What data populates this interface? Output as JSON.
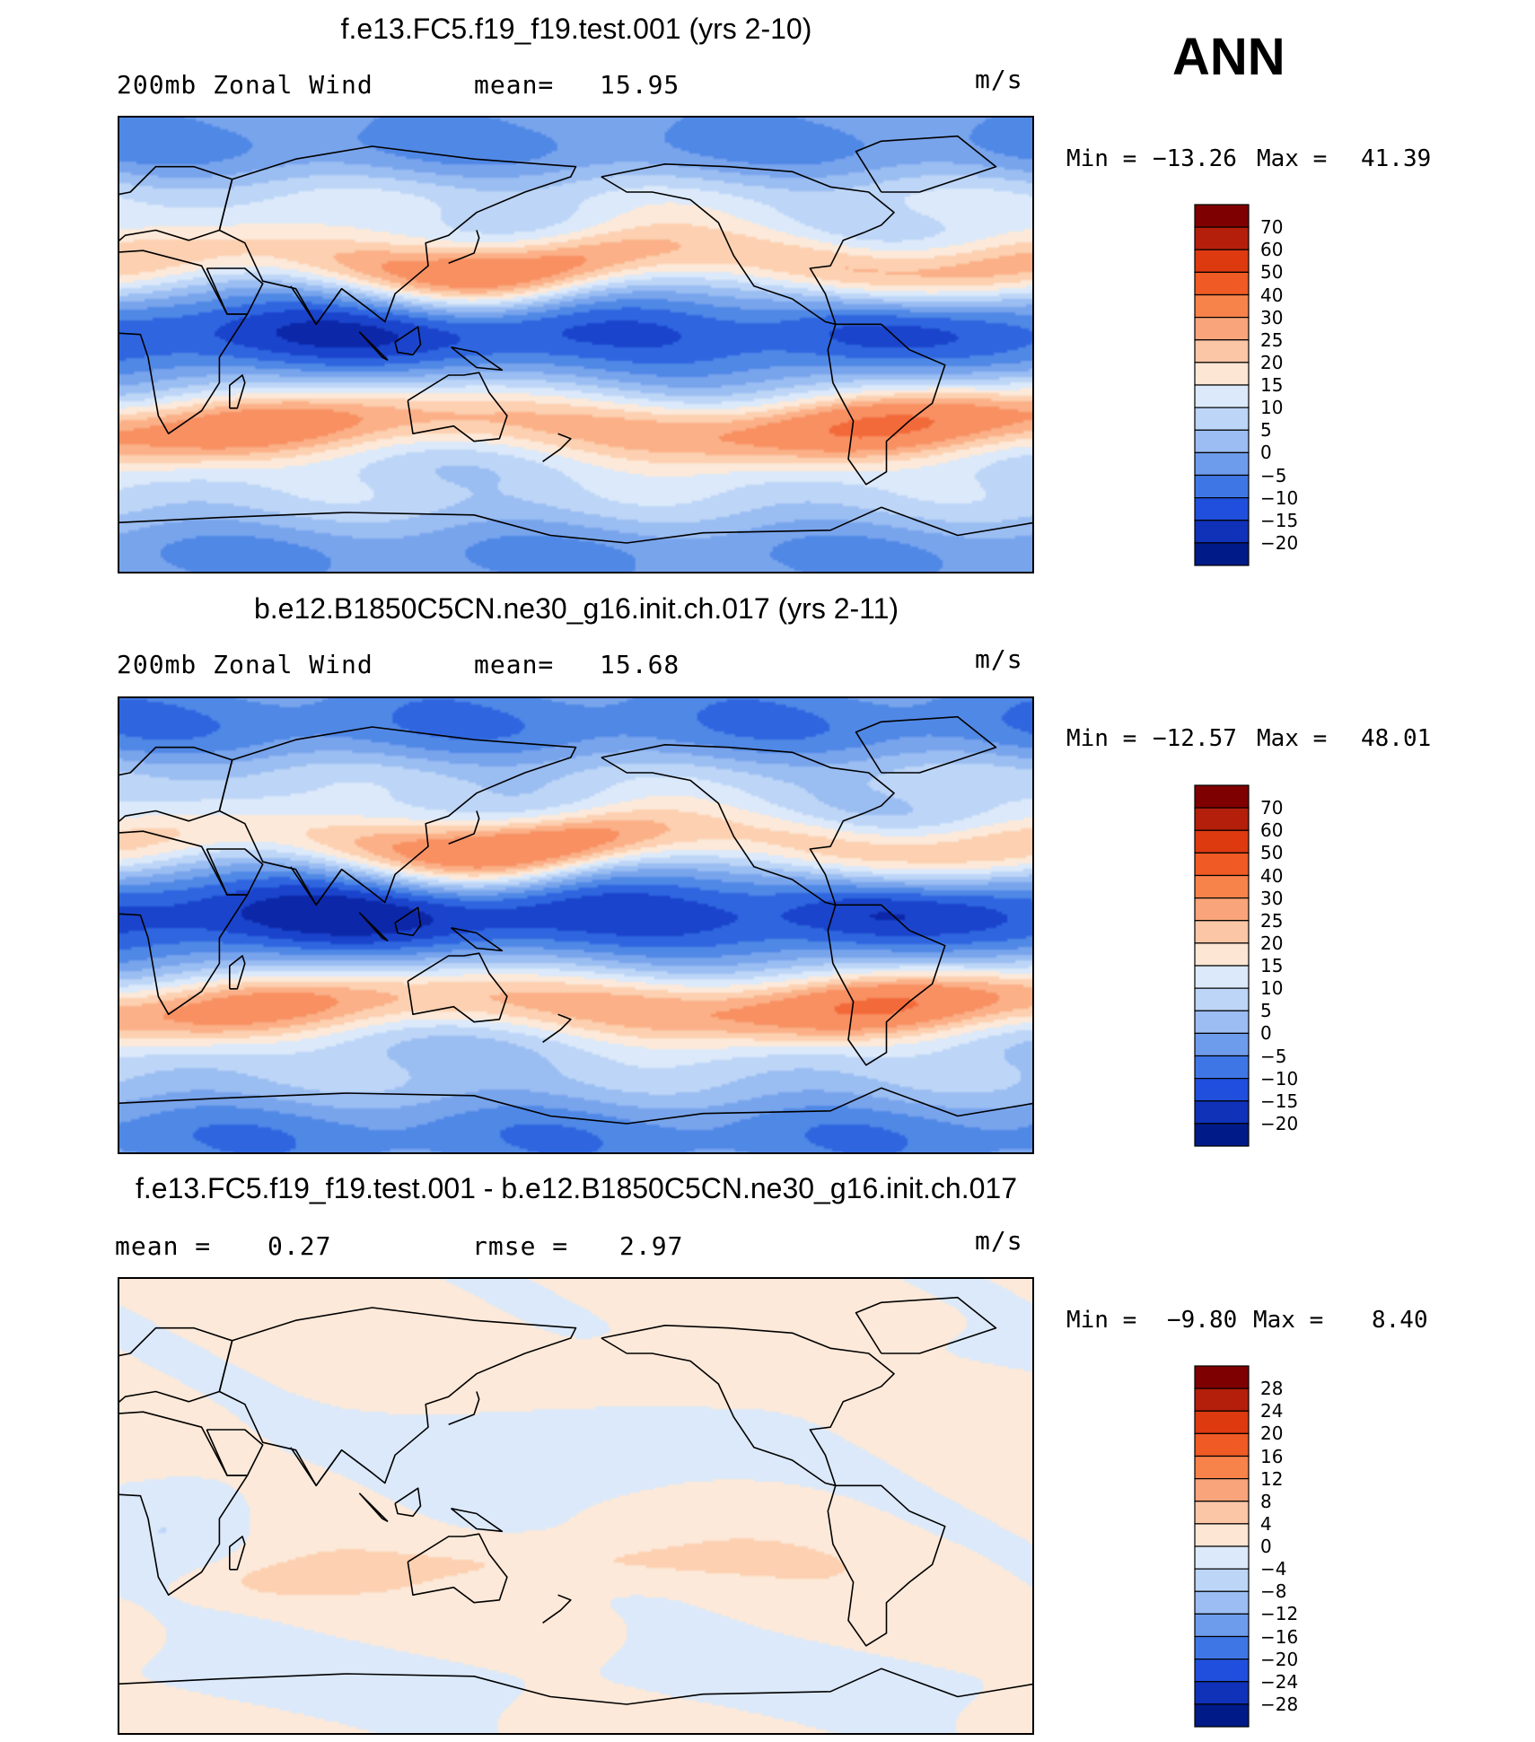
{
  "season": "ANN",
  "palette_main": [
    "#fde9d9",
    "#fcd0b0",
    "#fbb088",
    "#f89062",
    "#f26a3a",
    "#e94520",
    "#cc2a10",
    "#9a1208",
    "#7a0000"
  ],
  "palette_cool": [
    "#dbe9fa",
    "#bdd5f7",
    "#9abdf2",
    "#78a4ec",
    "#5088e6",
    "#2f66e0",
    "#1a44cc",
    "#0c27a8",
    "#001080"
  ],
  "panels": [
    {
      "title": "f.e13.FC5.f19_f19.test.001 (yrs 2-10)",
      "left_label": "200mb  Zonal Wind",
      "mid_label": "mean=",
      "mid_value": "15.95",
      "units": "m/s",
      "min_label": "Min  =",
      "min_value": "−13.26",
      "max_label": "Max  =",
      "max_value": "41.39",
      "field": "model"
    },
    {
      "title": "b.e12.B1850C5CN.ne30_g16.init.ch.017 (yrs 2-11)",
      "left_label": "200mb  Zonal Wind",
      "mid_label": "mean=",
      "mid_value": "15.68",
      "units": "m/s",
      "min_label": "Min  =",
      "min_value": "−12.57",
      "max_label": "Max  =",
      "max_value": "48.01",
      "field": "control"
    },
    {
      "title": "f.e13.FC5.f19_f19.test.001 - b.e12.B1850C5CN.ne30_g16.init.ch.017",
      "left_label": "mean  =",
      "left_value": "0.27",
      "mid_label": "rmse  =",
      "mid_value": "2.97",
      "units": "m/s",
      "min_label": "Min  =",
      "min_value": "−9.80",
      "max_label": "Max  =",
      "max_value": "8.40",
      "field": "diff"
    }
  ],
  "colorbars": [
    {
      "labels": [
        "70",
        "60",
        "50",
        "40",
        "30",
        "25",
        "20",
        "15",
        "10",
        "5",
        "0",
        "−5",
        "−10",
        "−15",
        "−20"
      ],
      "colors": [
        "#7f0000",
        "#b31f0a",
        "#dd3a10",
        "#f05a24",
        "#f7824a",
        "#f9a47a",
        "#fbc6a6",
        "#fde6d4",
        "#dbe9fa",
        "#bdd5f7",
        "#9bbdf3",
        "#6e9cec",
        "#3f76e6",
        "#1f4fdc",
        "#0f32b8",
        "#001a88"
      ]
    },
    {
      "labels": [
        "70",
        "60",
        "50",
        "40",
        "30",
        "25",
        "20",
        "15",
        "10",
        "5",
        "0",
        "−5",
        "−10",
        "−15",
        "−20"
      ],
      "colors": [
        "#7f0000",
        "#b31f0a",
        "#dd3a10",
        "#f05a24",
        "#f7824a",
        "#f9a47a",
        "#fbc6a6",
        "#fde6d4",
        "#dbe9fa",
        "#bdd5f7",
        "#9bbdf3",
        "#6e9cec",
        "#3f76e6",
        "#1f4fdc",
        "#0f32b8",
        "#001a88"
      ]
    },
    {
      "labels": [
        "28",
        "24",
        "20",
        "16",
        "12",
        "8",
        "4",
        "0",
        "−4",
        "−8",
        "−12",
        "−16",
        "−20",
        "−24",
        "−28"
      ],
      "colors": [
        "#7f0000",
        "#b31f0a",
        "#dd3a10",
        "#f05a24",
        "#f7824a",
        "#f9a47a",
        "#fbc6a6",
        "#fde6d4",
        "#dbe9fa",
        "#bdd5f7",
        "#9bbdf3",
        "#6e9cec",
        "#3f76e6",
        "#1f4fdc",
        "#0f32b8",
        "#001a88"
      ]
    }
  ]
}
